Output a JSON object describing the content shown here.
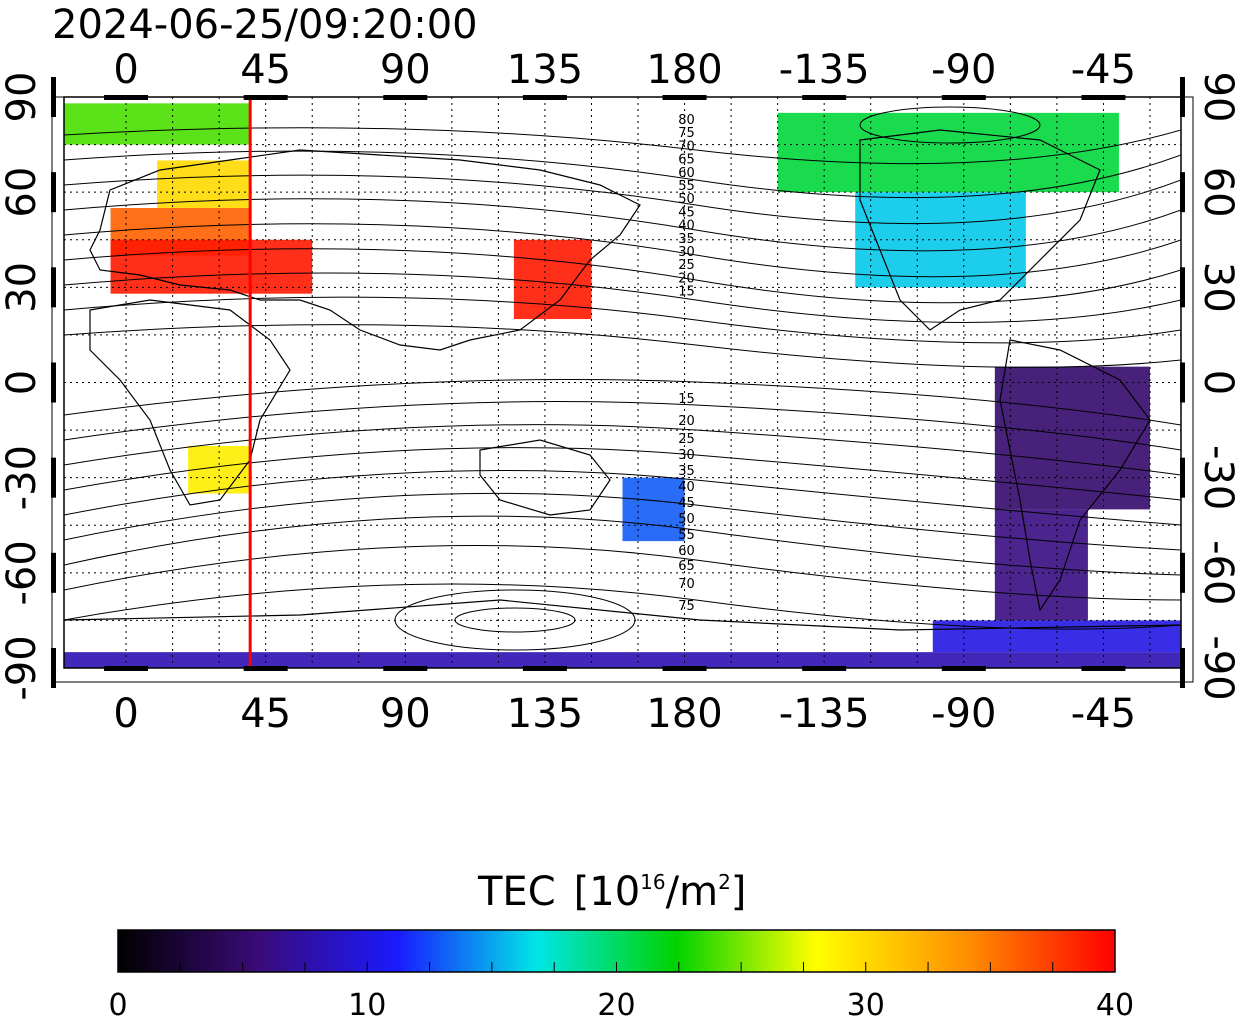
{
  "timestamp": "2024-06-25/09:20:00",
  "map": {
    "x_ticks": [
      "0",
      "45",
      "90",
      "135",
      "180",
      "-135",
      "-90",
      "-45"
    ],
    "y_ticks": [
      "90",
      "60",
      "30",
      "0",
      "-30",
      "-60",
      "-90"
    ],
    "contours_north": [
      "80",
      "75",
      "70",
      "65",
      "60",
      "55",
      "50",
      "45",
      "40",
      "35",
      "30",
      "25",
      "20",
      "15"
    ],
    "contours_south": [
      "15",
      "20",
      "25",
      "30",
      "35",
      "40",
      "45",
      "50",
      "55",
      "60",
      "65",
      "70",
      "75"
    ],
    "marker_longitude": 40,
    "marker_color": "#ff0000"
  },
  "colorbar": {
    "title": "TEC",
    "unit_base": "[10",
    "unit_exp": "16",
    "unit_mid": "/m",
    "unit_exp2": "2",
    "unit_end": "]",
    "tick_labels": [
      "0",
      "10",
      "20",
      "30",
      "40"
    ],
    "stops": [
      "#000000",
      "#3a0b78",
      "#1a1aff",
      "#00e6e6",
      "#00d200",
      "#ffff00",
      "#ff9000",
      "#ff0000"
    ]
  },
  "chart_data": {
    "type": "heatmap",
    "title": "2024-06-25/09:20:00",
    "xlabel": "",
    "ylabel": "",
    "xlim": [
      -20,
      340
    ],
    "ylim": [
      -90,
      90
    ],
    "colorbar_range": [
      0,
      40
    ],
    "regions": [
      {
        "lon": [
          -20,
          40
        ],
        "lat": [
          75,
          88
        ],
        "tec": 24
      },
      {
        "lon": [
          10,
          40
        ],
        "lat": [
          55,
          70
        ],
        "tec": 30
      },
      {
        "lon": [
          -5,
          40
        ],
        "lat": [
          40,
          55
        ],
        "tec": 36
      },
      {
        "lon": [
          -5,
          60
        ],
        "lat": [
          28,
          45
        ],
        "tec": 39
      },
      {
        "lon": [
          20,
          40
        ],
        "lat": [
          -35,
          -20
        ],
        "tec": 29
      },
      {
        "lon": [
          125,
          150
        ],
        "lat": [
          20,
          45
        ],
        "tec": 39
      },
      {
        "lon": [
          235,
          290
        ],
        "lat": [
          30,
          60
        ],
        "tec": 16
      },
      {
        "lon": [
          210,
          320
        ],
        "lat": [
          60,
          85
        ],
        "tec": 21
      },
      {
        "lon": [
          280,
          330
        ],
        "lat": [
          -40,
          5
        ],
        "tec": 5
      },
      {
        "lon": [
          280,
          310
        ],
        "lat": [
          -75,
          -40
        ],
        "tec": 6
      },
      {
        "lon": [
          260,
          340
        ],
        "lat": [
          -85,
          -75
        ],
        "tec": 10
      },
      {
        "lon": [
          -20,
          340
        ],
        "lat": [
          -90,
          -85
        ],
        "tec": 8
      },
      {
        "lon": [
          160,
          180
        ],
        "lat": [
          -50,
          -30
        ],
        "tec": 13
      }
    ]
  }
}
